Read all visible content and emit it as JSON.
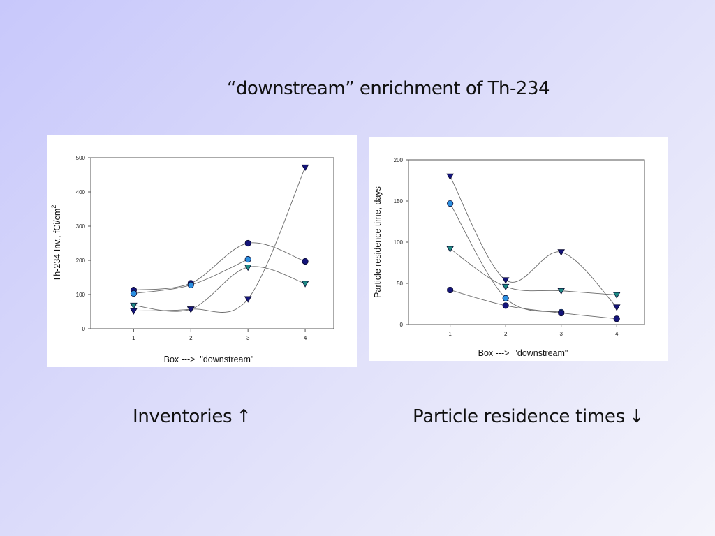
{
  "slide": {
    "title": "“downstream” enrichment of Th-234",
    "caption_left": "Inventories",
    "caption_left_arrow": "↑",
    "caption_right": "Particle residence times",
    "caption_right_arrow": "↓"
  },
  "colors": {
    "navy": "#14147a",
    "sky": "#2c8fe0",
    "teal": "#1e8a84",
    "curve": "#6a6a6a"
  },
  "chart_data": [
    {
      "type": "scatter",
      "xlabel": "Box --->  \"downstream\"",
      "ylabel": "Th-234 Inv., fCi/cm",
      "ylabel_superscript": "2",
      "xticks": [
        "1",
        "2",
        "3",
        "4"
      ],
      "yticks": [
        "0",
        "100",
        "200",
        "300",
        "400",
        "500"
      ],
      "xlim": [
        0.25,
        4.5
      ],
      "ylim": [
        0,
        500
      ],
      "grid": false,
      "smooth_curves": true,
      "series": [
        {
          "marker": "circle",
          "color": "#14147a",
          "x": [
            1,
            2,
            3,
            4
          ],
          "y": [
            113,
            133,
            250,
            197
          ]
        },
        {
          "marker": "circle",
          "color": "#2c8fe0",
          "x": [
            1,
            2,
            3
          ],
          "y": [
            103,
            128,
            203
          ]
        },
        {
          "marker": "triangle-down",
          "color": "#1e8a84",
          "x": [
            1,
            2,
            3,
            4
          ],
          "y": [
            68,
            57,
            180,
            132
          ]
        },
        {
          "marker": "triangle-down",
          "color": "#14147a",
          "x": [
            1,
            2,
            3,
            4
          ],
          "y": [
            52,
            57,
            87,
            472
          ]
        }
      ]
    },
    {
      "type": "scatter",
      "xlabel": "Box --->  \"downstream\"",
      "ylabel": "Particle residence time, days",
      "xticks": [
        "1",
        "2",
        "3",
        "4"
      ],
      "yticks": [
        "0",
        "50",
        "100",
        "150",
        "200"
      ],
      "xlim": [
        0.25,
        4.5
      ],
      "ylim": [
        0,
        200
      ],
      "grid": false,
      "smooth_curves": true,
      "series": [
        {
          "marker": "triangle-down",
          "color": "#14147a",
          "x": [
            1,
            2,
            3,
            4
          ],
          "y": [
            180,
            54,
            88,
            21
          ]
        },
        {
          "marker": "circle",
          "color": "#2c8fe0",
          "x": [
            1,
            2,
            3
          ],
          "y": [
            147,
            32,
            15
          ]
        },
        {
          "marker": "triangle-down",
          "color": "#1e8a84",
          "x": [
            1,
            2,
            3,
            4
          ],
          "y": [
            92,
            46,
            41,
            36
          ]
        },
        {
          "marker": "circle",
          "color": "#14147a",
          "x": [
            1,
            2,
            3,
            4
          ],
          "y": [
            42,
            23,
            14,
            7
          ]
        }
      ]
    }
  ]
}
